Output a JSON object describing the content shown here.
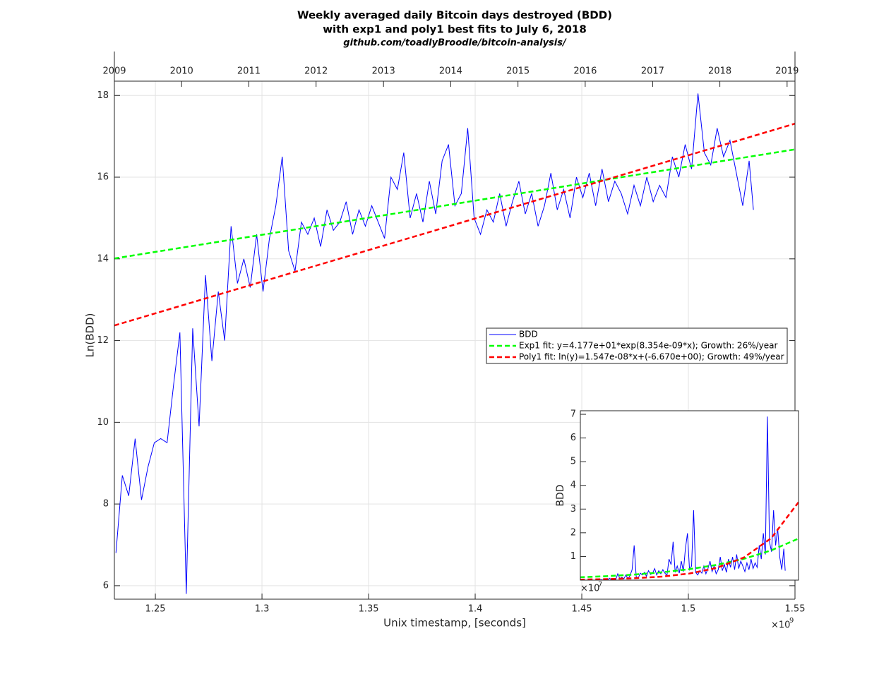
{
  "chart_data": [
    {
      "type": "line",
      "title": [
        "Weekly averaged daily Bitcoin days destroyed (BDD)",
        "with exp1 and poly1 best fits to July 6, 2018"
      ],
      "subtitle": "github.com/toadlyBroodle/bitcoin-analysis/",
      "xlabel": "Unix timestamp, [seconds]",
      "ylabel": "Ln(BDD)",
      "x_multiplier": "×10",
      "x_multiplier_power": "9",
      "xlim": [
        1.230768,
        1.55
      ],
      "ylim": [
        5.67,
        18.35
      ],
      "xticks": [
        1.25,
        1.3,
        1.35,
        1.4,
        1.45,
        1.5,
        1.55
      ],
      "x2ticks": [
        {
          "value": 1.230768,
          "label": "2009"
        },
        {
          "value": 1.262304,
          "label": "2010"
        },
        {
          "value": 1.29384,
          "label": "2011"
        },
        {
          "value": 1.325376,
          "label": "2012"
        },
        {
          "value": 1.3569984,
          "label": "2013"
        },
        {
          "value": 1.3885344,
          "label": "2014"
        },
        {
          "value": 1.4200704,
          "label": "2015"
        },
        {
          "value": 1.4516064,
          "label": "2016"
        },
        {
          "value": 1.4832288,
          "label": "2017"
        },
        {
          "value": 1.5147648,
          "label": "2018"
        },
        {
          "value": 1.5463008,
          "label": "2019"
        }
      ],
      "yticks": [
        6,
        8,
        10,
        12,
        14,
        16,
        18
      ],
      "grid": true,
      "legend": "east",
      "series": [
        {
          "name": "BDD",
          "color": "#0000ff",
          "style": "solid",
          "x": [
            1.2315,
            1.2345,
            1.2375,
            1.2405,
            1.2435,
            1.2465,
            1.2495,
            1.2525,
            1.2555,
            1.2585,
            1.2615,
            1.2645,
            1.2675,
            1.2705,
            1.2735,
            1.2765,
            1.2795,
            1.2825,
            1.2855,
            1.2885,
            1.2915,
            1.2945,
            1.2975,
            1.3005,
            1.3035,
            1.3065,
            1.3095,
            1.3125,
            1.3155,
            1.3185,
            1.3215,
            1.3245,
            1.3275,
            1.3305,
            1.3335,
            1.3365,
            1.3395,
            1.3425,
            1.3455,
            1.3485,
            1.3515,
            1.3545,
            1.3575,
            1.3605,
            1.3635,
            1.3665,
            1.3695,
            1.3725,
            1.3755,
            1.3785,
            1.3815,
            1.3845,
            1.3875,
            1.3905,
            1.3935,
            1.3965,
            1.3995,
            1.4025,
            1.4055,
            1.4085,
            1.4115,
            1.4145,
            1.4175,
            1.4205,
            1.4235,
            1.4265,
            1.4295,
            1.4325,
            1.4355,
            1.4385,
            1.4415,
            1.4445,
            1.4475,
            1.4505,
            1.4535,
            1.4565,
            1.4595,
            1.4625,
            1.4655,
            1.4685,
            1.4715,
            1.4745,
            1.4775,
            1.4805,
            1.4835,
            1.4865,
            1.4895,
            1.4925,
            1.4955,
            1.4985,
            1.5015,
            1.5045,
            1.5075,
            1.5105,
            1.5135,
            1.5165,
            1.5195,
            1.5225,
            1.5255,
            1.5285,
            1.5305
          ],
          "values": [
            6.8,
            8.7,
            8.2,
            9.6,
            8.1,
            8.9,
            9.5,
            9.6,
            9.5,
            10.9,
            12.2,
            5.8,
            12.3,
            9.9,
            13.6,
            11.5,
            13.2,
            12.0,
            14.8,
            13.4,
            14.0,
            13.3,
            14.6,
            13.2,
            14.5,
            15.3,
            16.5,
            14.2,
            13.7,
            14.9,
            14.6,
            15.0,
            14.3,
            15.2,
            14.7,
            14.9,
            15.4,
            14.6,
            15.2,
            14.8,
            15.3,
            14.9,
            14.5,
            16.0,
            15.7,
            16.6,
            15.0,
            15.6,
            14.9,
            15.9,
            15.1,
            16.4,
            16.8,
            15.3,
            15.6,
            17.2,
            15.0,
            14.6,
            15.2,
            14.9,
            15.6,
            14.8,
            15.4,
            15.9,
            15.1,
            15.6,
            14.8,
            15.3,
            16.1,
            15.2,
            15.7,
            15.0,
            16.0,
            15.5,
            16.1,
            15.3,
            16.2,
            15.4,
            15.9,
            15.6,
            15.1,
            15.8,
            15.3,
            16.0,
            15.4,
            15.8,
            15.5,
            16.5,
            16.0,
            16.8,
            16.2,
            18.05,
            16.6,
            16.3,
            17.2,
            16.5,
            16.9,
            16.1,
            15.3,
            16.4,
            15.2
          ]
        },
        {
          "name": "Exp1 fit: y=4.177e+01*exp(8.354e-09*x); Growth: 26%/year",
          "color": "#00ff00",
          "style": "dashed",
          "x": [
            1.230768,
            1.55
          ],
          "values": [
            14.01,
            16.68
          ]
        },
        {
          "name": "Poly1 fit: ln(y)=1.547e-08*x+(-6.670e+00); Growth: 49%/year",
          "color": "#ff0000",
          "style": "dashed",
          "x": [
            1.230768,
            1.55
          ],
          "values": [
            12.37,
            17.31
          ]
        }
      ]
    },
    {
      "type": "line",
      "ylabel": "BDD",
      "y_multiplier": "×10",
      "y_multiplier_power": "7",
      "xlim": [
        1.230768,
        1.55
      ],
      "ylim": [
        0,
        7.15
      ],
      "yticks": [
        1,
        2,
        3,
        4,
        5,
        6,
        7
      ],
      "series": [
        {
          "color": "#0000ff",
          "style": "solid",
          "x": [
            1.2315,
            1.2345,
            1.2375,
            1.2405,
            1.2435,
            1.2465,
            1.2495,
            1.2525,
            1.2555,
            1.2585,
            1.2615,
            1.2645,
            1.2675,
            1.2705,
            1.2735,
            1.2765,
            1.2795,
            1.2825,
            1.2855,
            1.2885,
            1.2915,
            1.2945,
            1.2975,
            1.3005,
            1.3035,
            1.3065,
            1.3095,
            1.3125,
            1.3155,
            1.3185,
            1.3215,
            1.3245,
            1.3275,
            1.3305,
            1.3335,
            1.3365,
            1.3395,
            1.3425,
            1.3455,
            1.3485,
            1.3515,
            1.3545,
            1.3575,
            1.3605,
            1.3635,
            1.3665,
            1.3695,
            1.3725,
            1.3755,
            1.3785,
            1.3815,
            1.3845,
            1.3875,
            1.3905,
            1.3935,
            1.3965,
            1.3995,
            1.4025,
            1.4055,
            1.4085,
            1.4115,
            1.4145,
            1.4175,
            1.4205,
            1.4235,
            1.4265,
            1.4295,
            1.4325,
            1.4355,
            1.4385,
            1.4415,
            1.4445,
            1.4475,
            1.4505,
            1.4535,
            1.4565,
            1.4595,
            1.4625,
            1.4655,
            1.4685,
            1.4715,
            1.4745,
            1.4775,
            1.4805,
            1.4835,
            1.4865,
            1.4895,
            1.4925,
            1.4955,
            1.4985,
            1.5015,
            1.5045,
            1.5075,
            1.5105,
            1.5135,
            1.5165,
            1.5195,
            1.5225,
            1.5255,
            1.5285,
            1.5305
          ],
          "values": [
            0,
            0.001,
            0,
            0.001,
            0,
            0.001,
            0.001,
            0.001,
            0.001,
            0.005,
            0.02,
            0,
            0.022,
            0.002,
            0.081,
            0.01,
            0.054,
            0.016,
            0.268,
            0.066,
            0.12,
            0.06,
            0.219,
            0.054,
            0.198,
            0.441,
            1.465,
            0.147,
            0.089,
            0.296,
            0.219,
            0.327,
            0.162,
            0.399,
            0.242,
            0.296,
            0.488,
            0.219,
            0.399,
            0.268,
            0.441,
            0.296,
            0.198,
            0.889,
            0.658,
            1.619,
            0.327,
            0.596,
            0.296,
            0.804,
            0.361,
            1.326,
            1.978,
            0.441,
            0.596,
            2.95,
            0.327,
            0.219,
            0.399,
            0.296,
            0.596,
            0.268,
            0.488,
            0.804,
            0.361,
            0.596,
            0.268,
            0.441,
            0.982,
            0.399,
            0.658,
            0.327,
            0.889,
            0.539,
            0.982,
            0.441,
            1.085,
            0.488,
            0.804,
            0.596,
            0.361,
            0.728,
            0.441,
            0.889,
            0.488,
            0.728,
            0.539,
            1.465,
            0.889,
            1.978,
            1.085,
            6.903,
            1.619,
            1.2,
            2.95,
            1.465,
            2.186,
            0.982,
            0.441,
            1.326,
            0.399
          ]
        },
        {
          "color": "#00ff00",
          "style": "dashed",
          "x": [
            1.23,
            1.27,
            1.31,
            1.35,
            1.39,
            1.43,
            1.47,
            1.51,
            1.55
          ],
          "values": [
            0.121,
            0.169,
            0.236,
            0.33,
            0.461,
            0.644,
            0.899,
            1.256,
            1.755
          ]
        },
        {
          "color": "#ff0000",
          "style": "dashed",
          "x": [
            1.23,
            1.27,
            1.31,
            1.35,
            1.39,
            1.43,
            1.47,
            1.51,
            1.55
          ],
          "values": [
            0.023,
            0.043,
            0.08,
            0.149,
            0.277,
            0.514,
            0.954,
            1.77,
            3.29
          ]
        }
      ]
    }
  ]
}
